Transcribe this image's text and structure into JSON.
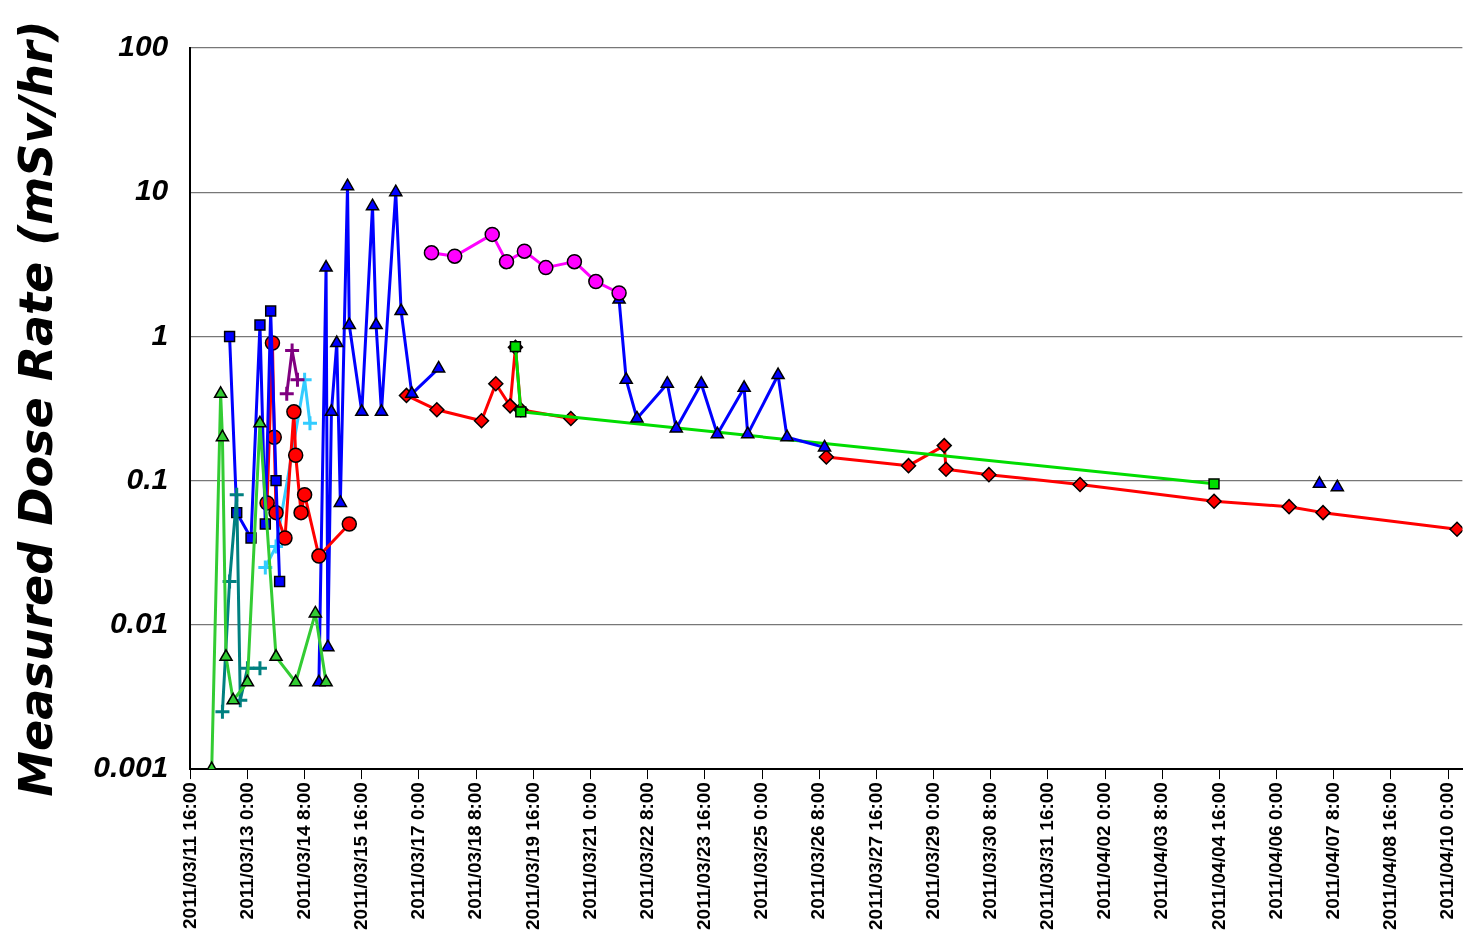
{
  "chart_data": {
    "type": "line",
    "ylabel": "Measured Dose Rate (mSv/hr)",
    "log": "y",
    "grid": "y",
    "legend": false,
    "xlim": [
      "2011-03-11T16:00",
      "2011-04-10T08:00"
    ],
    "ylim": [
      0.001,
      100
    ],
    "yticks": [
      0.001,
      0.01,
      0.1,
      1,
      10,
      100
    ],
    "xticks": [
      {
        "value": "2011-03-11T16:00",
        "label": "2011/03/11 16:00"
      },
      {
        "value": "2011-03-13T00:00",
        "label": "2011/03/13 0:00"
      },
      {
        "value": "2011-03-14T08:00",
        "label": "2011/03/14 8:00"
      },
      {
        "value": "2011-03-15T16:00",
        "label": "2011/03/15 16:00"
      },
      {
        "value": "2011-03-17T00:00",
        "label": "2011/03/17 0:00"
      },
      {
        "value": "2011-03-18T08:00",
        "label": "2011/03/18 8:00"
      },
      {
        "value": "2011-03-19T16:00",
        "label": "2011/03/19 16:00"
      },
      {
        "value": "2011-03-21T00:00",
        "label": "2011/03/21 0:00"
      },
      {
        "value": "2011-03-22T08:00",
        "label": "2011/03/22 8:00"
      },
      {
        "value": "2011-03-23T16:00",
        "label": "2011/03/23 16:00"
      },
      {
        "value": "2011-03-25T00:00",
        "label": "2011/03/25 0:00"
      },
      {
        "value": "2011-03-26T08:00",
        "label": "2011/03/26 8:00"
      },
      {
        "value": "2011-03-27T16:00",
        "label": "2011/03/27 16:00"
      },
      {
        "value": "2011-03-29T00:00",
        "label": "2011/03/29 0:00"
      },
      {
        "value": "2011-03-30T08:00",
        "label": "2011/03/30 8:00"
      },
      {
        "value": "2011-03-31T16:00",
        "label": "2011/03/31 16:00"
      },
      {
        "value": "2011-04-02T00:00",
        "label": "2011/04/02 0:00"
      },
      {
        "value": "2011-04-03T08:00",
        "label": "2011/04/03 8:00"
      },
      {
        "value": "2011-04-04T16:00",
        "label": "2011/04/04 16:00"
      },
      {
        "value": "2011-04-06T00:00",
        "label": "2011/04/06 0:00"
      },
      {
        "value": "2011-04-07T08:00",
        "label": "2011/04/07 8:00"
      },
      {
        "value": "2011-04-08T16:00",
        "label": "2011/04/08 16:00"
      },
      {
        "value": "2011-04-10T00:00",
        "label": "2011/04/10 0:00"
      }
    ],
    "series": [
      {
        "color": "#33cc33",
        "marker": "triangle",
        "x": [
          "2011-03-12T04:00",
          "2011-03-12T09:00",
          "2011-03-12T10:00",
          "2011-03-12T12:00",
          "2011-03-12T16:00",
          "2011-03-13T00:00",
          "2011-03-13T07:00",
          "2011-03-13T16:00",
          "2011-03-14T03:00",
          "2011-03-14T14:00",
          "2011-03-14T20:00"
        ],
        "values": [
          0.001,
          0.4,
          0.2,
          0.006,
          0.003,
          0.004,
          0.25,
          0.006,
          0.004,
          0.012,
          0.004
        ]
      },
      {
        "color": "#008080",
        "marker": "cross",
        "x": [
          "2011-03-12T10:00",
          "2011-03-12T14:00",
          "2011-03-12T18:00",
          "2011-03-12T20:00",
          "2011-03-13T00:00",
          "2011-03-13T07:00"
        ],
        "values": [
          0.0025,
          0.02,
          0.08,
          0.003,
          0.005,
          0.005
        ]
      },
      {
        "color": "#0000ff",
        "marker": "square",
        "x": [
          "2011-03-12T14:00",
          "2011-03-12T18:00",
          "2011-03-13T02:00",
          "2011-03-13T07:00",
          "2011-03-13T10:00",
          "2011-03-13T13:00",
          "2011-03-13T16:00",
          "2011-03-13T18:00"
        ],
        "values": [
          1.0,
          0.06,
          0.04,
          1.2,
          0.05,
          1.5,
          0.1,
          0.02
        ]
      },
      {
        "color": "#ff0000",
        "marker": "circle",
        "x": [
          "2011-03-13T11:00",
          "2011-03-13T14:00",
          "2011-03-13T15:00",
          "2011-03-13T16:00",
          "2011-03-13T21:00",
          "2011-03-14T02:00",
          "2011-03-14T03:00",
          "2011-03-14T06:00",
          "2011-03-14T08:00",
          "2011-03-14T16:00",
          "2011-03-15T09:00"
        ],
        "values": [
          0.07,
          0.9,
          0.2,
          0.06,
          0.04,
          0.3,
          0.15,
          0.06,
          0.08,
          0.03,
          0.05
        ]
      },
      {
        "color": "#800080",
        "marker": "cross",
        "x": [
          "2011-03-13T22:00",
          "2011-03-14T01:00",
          "2011-03-14T04:00"
        ],
        "values": [
          0.4,
          0.8,
          0.5
        ]
      },
      {
        "color": "#33ccff",
        "marker": "cross",
        "x": [
          "2011-03-13T10:00",
          "2011-03-13T16:00",
          "2011-03-14T08:00",
          "2011-03-14T11:00"
        ],
        "values": [
          0.025,
          0.035,
          0.5,
          0.25
        ]
      },
      {
        "color": "#ff00ff",
        "marker": "circle",
        "x": [
          "2011-03-17T07:00",
          "2011-03-17T20:00",
          "2011-03-18T17:00",
          "2011-03-19T01:00",
          "2011-03-19T11:00",
          "2011-03-19T23:00",
          "2011-03-20T15:00",
          "2011-03-21T03:00",
          "2011-03-21T16:00"
        ],
        "values": [
          3.8,
          3.6,
          5.1,
          3.3,
          3.9,
          3.0,
          3.3,
          2.4,
          2.0
        ]
      },
      {
        "color": "#0000ff",
        "marker": "triangle",
        "x": [
          "2011-03-14T16:00",
          "2011-03-14T20:00",
          "2011-03-14T21:00",
          "2011-03-14T23:00",
          "2011-03-15T02:00",
          "2011-03-15T04:00",
          "2011-03-15T08:00",
          "2011-03-15T09:00",
          "2011-03-15T16:00",
          "2011-03-15T22:00",
          "2011-03-16T00:00",
          "2011-03-16T03:00",
          "2011-03-16T11:00",
          "2011-03-16T14:00",
          "2011-03-16T20:00",
          "2011-03-17T11:00",
          "2011-03-19T00:00",
          "2011-03-21T16:00",
          "2011-03-21T20:00",
          "2011-03-22T02:00",
          "2011-03-22T19:00",
          "2011-03-23T00:00",
          "2011-03-23T14:00",
          "2011-03-23T23:00",
          "2011-03-24T14:00",
          "2011-03-24T16:00",
          "2011-03-25T09:00",
          "2011-03-25T14:00",
          "2011-03-26T11:00"
        ],
        "values": [
          0.004,
          3.0,
          0.007,
          0.3,
          0.9,
          0.07,
          11,
          1.2,
          0.3,
          8,
          1.2,
          0.3,
          10,
          1.5,
          0.4,
          0.6,
          null,
          1.8,
          0.5,
          0.27,
          0.47,
          0.23,
          0.47,
          0.21,
          0.44,
          0.21,
          0.54,
          0.2,
          0.17
        ]
      },
      {
        "type": "scatter",
        "color": "#0000ff",
        "marker": "triangle",
        "x": [
          "2011-04-07T00:00",
          "2011-04-07T10:00"
        ],
        "values": [
          0.095,
          0.09
        ]
      },
      {
        "color": "#00dd00",
        "marker": "square",
        "x": [
          "2011-03-19T06:00",
          "2011-03-19T09:00",
          "2011-04-04T13:00"
        ],
        "values": [
          0.85,
          0.3,
          0.095
        ]
      },
      {
        "color": "#ff0000",
        "marker": "diamond",
        "x": [
          "2011-03-16T17:00",
          "2011-03-17T10:00",
          "2011-03-18T11:00",
          "2011-03-18T19:00",
          "2011-03-19T03:00",
          "2011-03-19T06:00",
          "2011-03-19T09:00",
          "2011-03-20T13:00",
          "2011-03-23T00:00",
          "2011-03-26T12:00",
          "2011-03-28T10:00",
          "2011-03-29T06:00",
          "2011-03-29T07:00",
          "2011-03-30T07:00",
          "2011-04-01T10:00",
          "2011-04-04T13:00",
          "2011-04-06T07:00",
          "2011-04-07T02:00",
          "2011-04-10T05:00"
        ],
        "values": [
          0.39,
          0.31,
          0.26,
          0.47,
          0.33,
          0.84,
          0.31,
          0.27,
          null,
          0.146,
          0.127,
          0.175,
          0.12,
          0.11,
          0.094,
          0.072,
          0.066,
          0.06,
          0.046
        ]
      }
    ]
  }
}
